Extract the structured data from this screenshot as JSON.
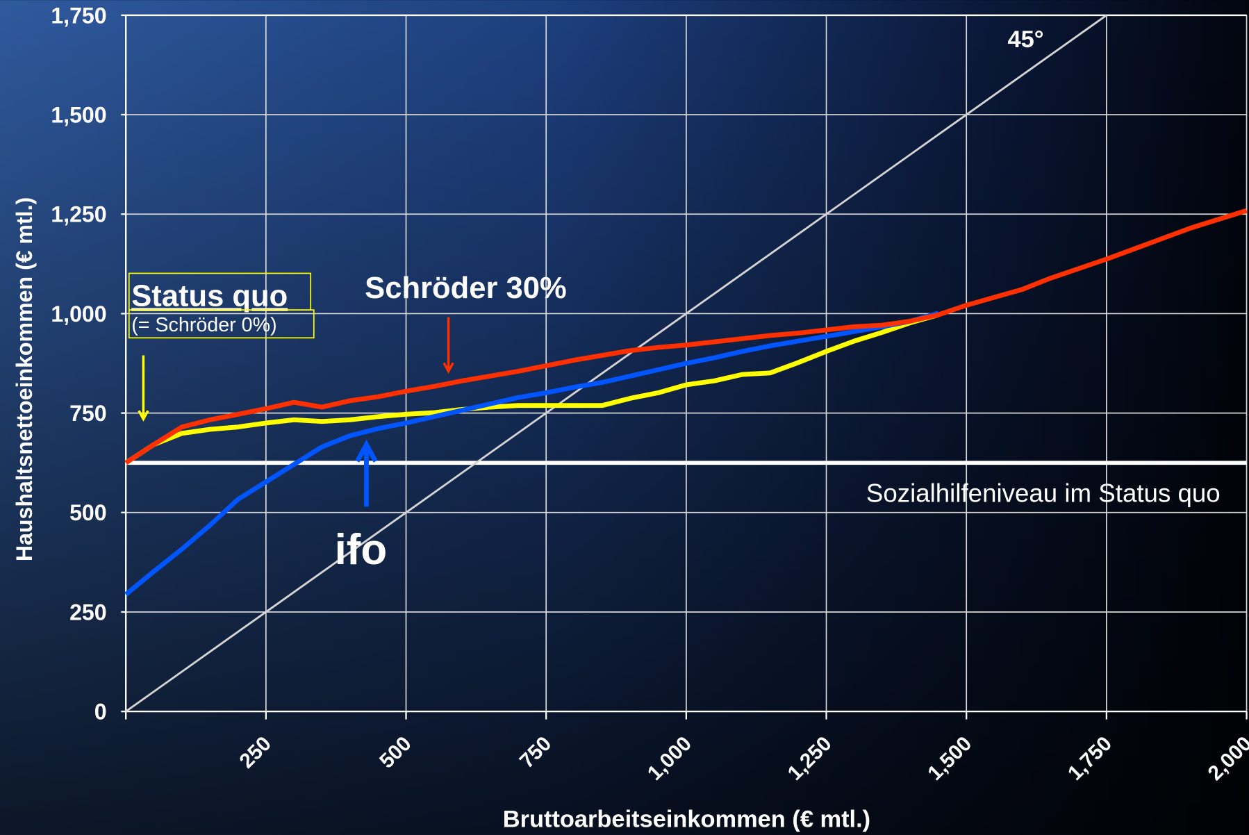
{
  "chart_data": {
    "type": "line",
    "xlabel": "Bruttoarbeitseinkommen (€ mtl.)",
    "ylabel": "Haushaltsnettoeinkommen (€ mtl.)",
    "x": [
      0,
      50,
      100,
      150,
      200,
      250,
      300,
      350,
      400,
      450,
      500,
      550,
      600,
      650,
      700,
      750,
      800,
      850,
      900,
      950,
      1000,
      1050,
      1100,
      1150,
      1200,
      1250,
      1300,
      1350,
      1400,
      1450,
      1500,
      1550,
      1600,
      1650,
      1700,
      1750,
      1800,
      1850,
      1900,
      1950,
      2000
    ],
    "series": [
      {
        "name": "45°",
        "color": "#d4d4d4",
        "values": [
          0,
          50,
          100,
          150,
          200,
          250,
          300,
          350,
          400,
          450,
          500,
          550,
          600,
          650,
          700,
          750,
          800,
          850,
          900,
          950,
          1000,
          1050,
          1100,
          1150,
          1200,
          1250,
          1300,
          1350,
          1400,
          1450,
          1500,
          1550,
          1600,
          1650,
          1700,
          1750,
          null,
          null,
          null,
          null,
          null
        ]
      },
      {
        "name": "Status quo",
        "color": "#ffff00",
        "values": [
          625,
          671,
          699,
          709,
          715,
          725,
          733,
          729,
          733,
          741,
          747,
          751,
          759,
          765,
          769,
          769,
          769,
          769,
          787,
          801,
          821,
          831,
          847,
          851,
          877,
          905,
          931,
          953,
          977,
          997,
          null,
          null,
          null,
          null,
          null,
          null,
          null,
          null,
          null,
          null,
          null
        ]
      },
      {
        "name": "ifo",
        "color": "#0055ff",
        "values": [
          294,
          352,
          408,
          468,
          533,
          577,
          621,
          665,
          693,
          711,
          725,
          741,
          757,
          773,
          789,
          801,
          815,
          827,
          843,
          859,
          875,
          889,
          905,
          919,
          931,
          943,
          955,
          967,
          981,
          1001,
          null,
          null,
          null,
          null,
          null,
          null,
          null,
          null,
          null,
          null,
          null
        ]
      },
      {
        "name": "Schröder 30%",
        "color": "#ff3000",
        "values": [
          625,
          671,
          715,
          733,
          747,
          761,
          777,
          765,
          781,
          791,
          805,
          817,
          831,
          843,
          855,
          869,
          883,
          895,
          907,
          915,
          921,
          929,
          937,
          945,
          951,
          959,
          967,
          971,
          981,
          997,
          1021,
          1041,
          1061,
          1089,
          1113,
          1137,
          1163,
          1189,
          1215,
          1237,
          1259
        ]
      }
    ],
    "annotations": [
      "(= Schröder 0%)"
    ],
    "hline": {
      "value": 625,
      "label": "Sozialhilfeniveau im Status quo",
      "color": "#ffffff"
    },
    "xlim": [
      0,
      2000
    ],
    "ylim": [
      0,
      1750
    ],
    "xticks": [
      {
        "value": 250,
        "label": "250"
      },
      {
        "value": 500,
        "label": "500"
      },
      {
        "value": 750,
        "label": "750"
      },
      {
        "value": 1000,
        "label": "1,000"
      },
      {
        "value": 1250,
        "label": "1,250"
      },
      {
        "value": 1500,
        "label": "1,500"
      },
      {
        "value": 1750,
        "label": "1,750"
      },
      {
        "value": 2000,
        "label": "2,000"
      }
    ],
    "yticks": [
      0,
      250,
      500,
      750,
      {
        "value": 1000,
        "label": "1,000"
      },
      {
        "value": 1250,
        "label": "1,250"
      },
      {
        "value": 1500,
        "label": "1,500"
      },
      {
        "value": 1750,
        "label": "1,750"
      }
    ],
    "grid": true
  }
}
